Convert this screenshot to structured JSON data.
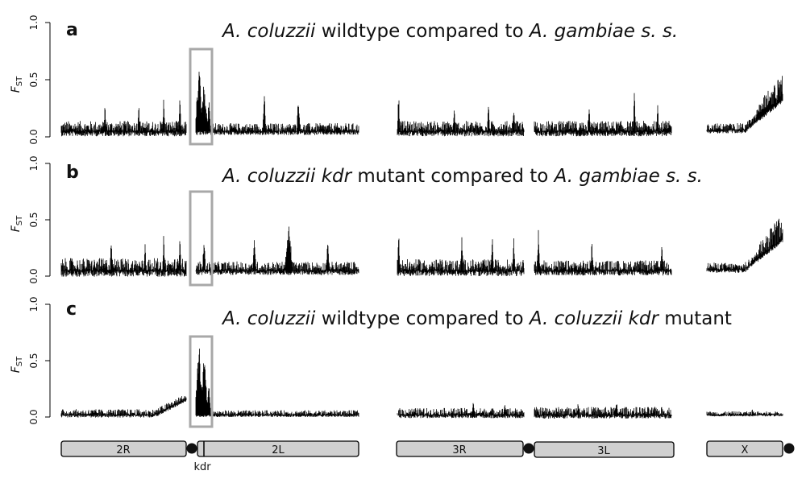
{
  "chart_data": [
    {
      "type": "line",
      "panel_label": "a",
      "title": {
        "species1": "A. coluzzii",
        "mid": "wildtype compared to",
        "species2": "A. gambiae s. s."
      },
      "ylabel": "F",
      "ylabel_sub": "ST",
      "yticks": [
        "0.0",
        "0.5",
        "1.0"
      ],
      "ylim": [
        0,
        1
      ],
      "highlight_box": true,
      "arms": [
        {
          "arm": "2R",
          "baseline": 0.05,
          "spread": 0.09,
          "peaks": [
            [
              0.35,
              0.3
            ],
            [
              0.62,
              0.34
            ],
            [
              0.82,
              0.36
            ],
            [
              0.95,
              0.38
            ]
          ]
        },
        {
          "arm": "2L",
          "baseline": 0.05,
          "spread": 0.07,
          "peaks": [
            [
              0.02,
              0.65
            ],
            [
              0.05,
              0.5
            ],
            [
              0.08,
              0.38
            ],
            [
              0.42,
              0.43
            ],
            [
              0.63,
              0.41
            ]
          ]
        },
        {
          "arm": "3R",
          "baseline": 0.05,
          "spread": 0.09,
          "peaks": [
            [
              0.01,
              0.42
            ],
            [
              0.45,
              0.3
            ],
            [
              0.72,
              0.33
            ],
            [
              0.92,
              0.28
            ]
          ]
        },
        {
          "arm": "3L",
          "baseline": 0.05,
          "spread": 0.09,
          "peaks": [
            [
              0.4,
              0.33
            ],
            [
              0.73,
              0.41
            ],
            [
              0.9,
              0.3
            ]
          ]
        },
        {
          "arm": "X",
          "baseline": 0.06,
          "spread": 0.06,
          "rise_to": 0.55,
          "peaks": [
            [
              0.95,
              0.6
            ]
          ]
        }
      ]
    },
    {
      "type": "line",
      "panel_label": "b",
      "title": {
        "species1": "A. coluzzii",
        "kdr": "kdr",
        "mid": "mutant compared to",
        "species2": "A. gambiae s. s."
      },
      "ylabel": "F",
      "ylabel_sub": "ST",
      "yticks": [
        "0.0",
        "0.5",
        "1.0"
      ],
      "ylim": [
        0,
        1
      ],
      "highlight_box": true,
      "arms": [
        {
          "arm": "2R",
          "baseline": 0.05,
          "spread": 0.11,
          "peaks": [
            [
              0.4,
              0.35
            ],
            [
              0.67,
              0.33
            ],
            [
              0.82,
              0.38
            ],
            [
              0.95,
              0.4
            ]
          ]
        },
        {
          "arm": "2L",
          "baseline": 0.05,
          "spread": 0.08,
          "peaks": [
            [
              0.05,
              0.36
            ],
            [
              0.36,
              0.38
            ],
            [
              0.57,
              0.5
            ],
            [
              0.81,
              0.33
            ]
          ]
        },
        {
          "arm": "3R",
          "baseline": 0.05,
          "spread": 0.1,
          "peaks": [
            [
              0.01,
              0.45
            ],
            [
              0.51,
              0.38
            ],
            [
              0.75,
              0.4
            ],
            [
              0.92,
              0.35
            ]
          ]
        },
        {
          "arm": "3L",
          "baseline": 0.05,
          "spread": 0.09,
          "peaks": [
            [
              0.03,
              0.43
            ],
            [
              0.42,
              0.33
            ],
            [
              0.93,
              0.3
            ]
          ]
        },
        {
          "arm": "X",
          "baseline": 0.06,
          "spread": 0.06,
          "rise_to": 0.55,
          "peaks": [
            [
              0.95,
              0.6
            ]
          ]
        }
      ]
    },
    {
      "type": "line",
      "panel_label": "c",
      "title": {
        "species1": "A. coluzzii",
        "mid": "wildtype compared to",
        "species2": "A. coluzzii",
        "kdr": "kdr",
        "end": "mutant"
      },
      "ylabel": "F",
      "ylabel_sub": "ST",
      "yticks": [
        "0.0",
        "0.5",
        "1.0"
      ],
      "ylim": [
        0,
        1
      ],
      "highlight_box": true,
      "arms": [
        {
          "arm": "2R",
          "baseline": 0.02,
          "spread": 0.05,
          "rise_end": 0.16,
          "peaks": [
            [
              0.95,
              0.2
            ]
          ]
        },
        {
          "arm": "2L",
          "baseline": 0.02,
          "spread": 0.04,
          "peaks": [
            [
              0.02,
              0.66
            ],
            [
              0.05,
              0.55
            ],
            [
              0.08,
              0.35
            ]
          ]
        },
        {
          "arm": "3R",
          "baseline": 0.02,
          "spread": 0.06,
          "peaks": [
            [
              0.6,
              0.18
            ],
            [
              0.85,
              0.14
            ]
          ]
        },
        {
          "arm": "3L",
          "baseline": 0.02,
          "spread": 0.07,
          "peaks": [
            [
              0.32,
              0.14
            ],
            [
              0.6,
              0.15
            ]
          ]
        },
        {
          "arm": "X",
          "baseline": 0.02,
          "spread": 0.03,
          "peaks": [
            [
              0.6,
              0.1
            ]
          ]
        }
      ]
    }
  ],
  "chromosomes": [
    {
      "label": "2R"
    },
    {
      "label": "2L"
    },
    {
      "label": "3R"
    },
    {
      "label": "3L"
    },
    {
      "label": "X"
    }
  ],
  "kdr_marker_label": "kdr",
  "colors": {
    "trace": "#000000",
    "box": "#a8a8a8",
    "chromosome_fill": "#d0d0d0",
    "centromere": "#111111"
  }
}
